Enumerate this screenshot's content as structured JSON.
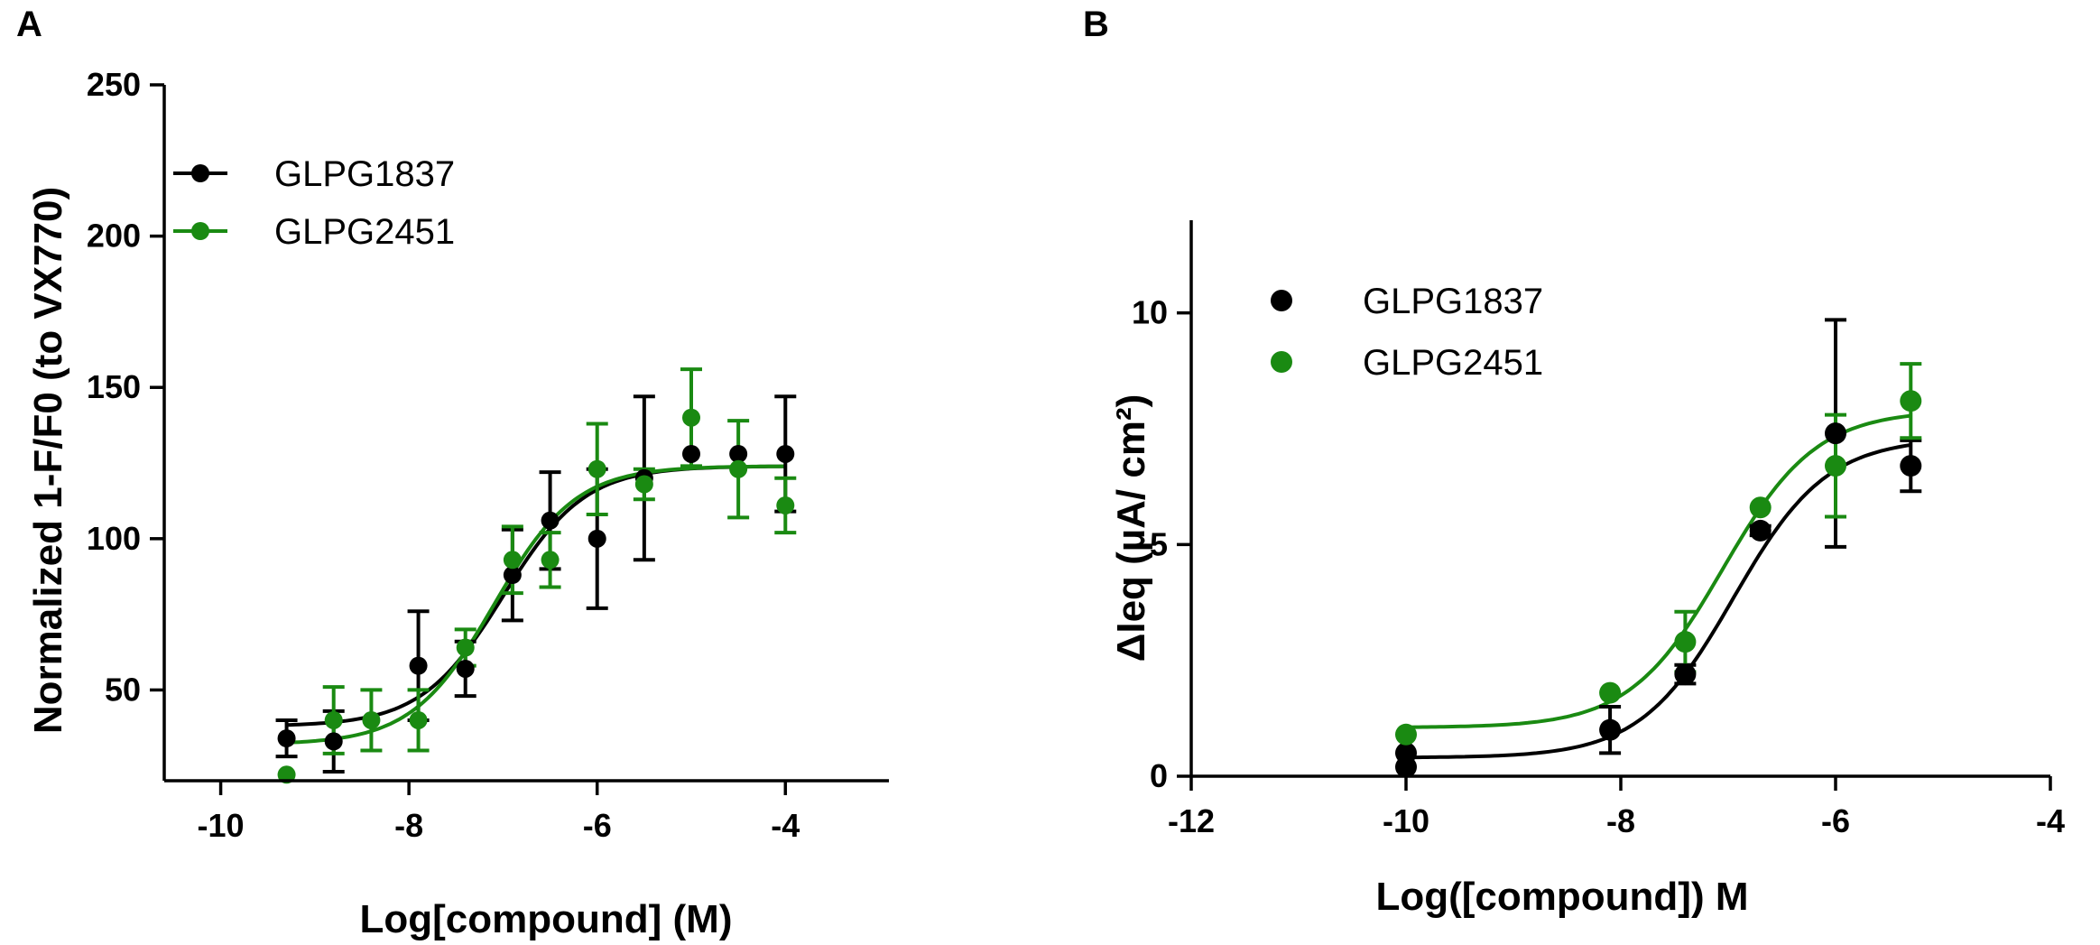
{
  "chart_data": [
    {
      "panel": "A",
      "type": "scatter",
      "xlabel": "Log[compound] (M)",
      "ylabel": "Normalized 1-F/F0 (to VX770)",
      "xlim": [
        -10.6,
        -2.9
      ],
      "ylim": [
        20,
        250
      ],
      "xticks": [
        -10,
        -8,
        -6,
        -4
      ],
      "yticks": [
        50,
        100,
        150,
        200,
        250
      ],
      "legend": {
        "position": "top-left",
        "style": "line-marker"
      },
      "series": [
        {
          "name": "GLPG1837",
          "color": "#000000",
          "x": [
            -9.3,
            -8.8,
            -7.9,
            -7.4,
            -6.9,
            -6.5,
            -6.0,
            -5.5,
            -5.0,
            -4.5,
            -4.0
          ],
          "y": [
            34,
            33,
            58,
            57,
            88,
            106,
            100,
            120,
            128,
            128,
            128
          ],
          "err": [
            6,
            10,
            18,
            9,
            15,
            16,
            23,
            27,
            0,
            0,
            19
          ],
          "fit": {
            "bottom": 38,
            "top": 124,
            "logEC50": -7.0,
            "hill": 1.0
          }
        },
        {
          "name": "GLPG2451",
          "color": "#1a8a12",
          "x": [
            -9.3,
            -8.8,
            -8.4,
            -7.9,
            -7.4,
            -6.9,
            -6.5,
            -6.0,
            -5.5,
            -5.0,
            -4.5,
            -4.0
          ],
          "y": [
            22,
            40,
            40,
            40,
            64,
            93,
            93,
            123,
            118,
            140,
            123,
            111
          ],
          "err": [
            0,
            11,
            10,
            10,
            6,
            11,
            9,
            15,
            5,
            16,
            16,
            9
          ],
          "fit": {
            "bottom": 32,
            "top": 124,
            "logEC50": -7.1,
            "hill": 1.0
          }
        }
      ]
    },
    {
      "panel": "B",
      "type": "scatter",
      "xlabel": "Log([compound]) M",
      "ylabel": "ΔIeq (µA/ cm²)",
      "xlim": [
        -12,
        -4
      ],
      "ylim": [
        0,
        12
      ],
      "xticks": [
        -12,
        -10,
        -8,
        -6,
        -4
      ],
      "yticks": [
        0,
        5,
        10
      ],
      "legend": {
        "position": "top-left",
        "style": "marker"
      },
      "series": [
        {
          "name": "GLPG1837",
          "color": "#000000",
          "x": [
            -10,
            -10,
            -8.1,
            -7.4,
            -6.7,
            -6.0,
            -5.3
          ],
          "y": [
            0.2,
            0.5,
            1.0,
            2.2,
            5.3,
            7.4,
            6.7
          ],
          "err": [
            0,
            0,
            0.5,
            0.2,
            0.1,
            2.45,
            0.55
          ],
          "fit": {
            "bottom": 0.4,
            "top": 7.3,
            "logEC50": -6.95,
            "hill": 1.0
          }
        },
        {
          "name": "GLPG2451",
          "color": "#1a8a12",
          "x": [
            -10,
            -8.1,
            -7.4,
            -6.7,
            -6.0,
            -5.3
          ],
          "y": [
            0.9,
            1.8,
            2.9,
            5.8,
            6.7,
            8.1
          ],
          "err": [
            0,
            0,
            0.65,
            0,
            1.1,
            0.8
          ],
          "fit": {
            "bottom": 1.05,
            "top": 7.9,
            "logEC50": -7.05,
            "hill": 1.0
          }
        }
      ]
    }
  ]
}
